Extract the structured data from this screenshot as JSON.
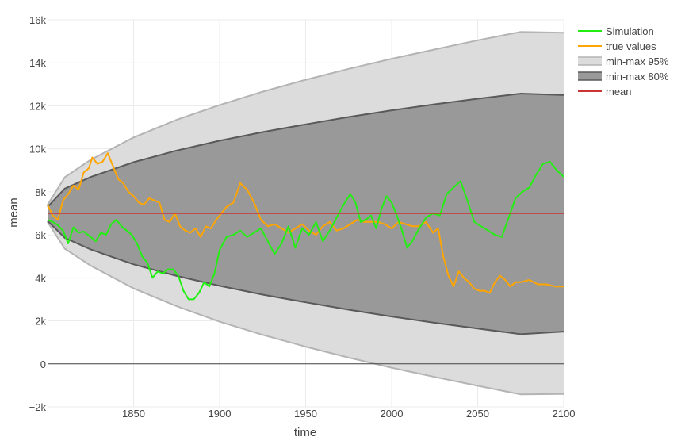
{
  "chart_data": {
    "type": "line",
    "title": "",
    "xlabel": "time",
    "ylabel": "mean",
    "xlim": [
      1800,
      2100
    ],
    "ylim": [
      -2000,
      16000
    ],
    "x_ticks": [
      1850,
      1900,
      1950,
      2000,
      2050,
      2100
    ],
    "x_tick_labels": [
      "1850",
      "1900",
      "1950",
      "2000",
      "2050",
      "2100"
    ],
    "y_ticks": [
      -2000,
      0,
      2000,
      4000,
      6000,
      8000,
      10000,
      12000,
      14000,
      16000
    ],
    "y_tick_labels": [
      "−2k",
      "0",
      "2k",
      "4k",
      "6k",
      "8k",
      "10k",
      "12k",
      "14k",
      "16k"
    ],
    "grid": true,
    "legend_position": "top-right",
    "colors": {
      "simulation": "#22ee11",
      "true_values": "#ffa500",
      "band95_fill": "#dcdcdc",
      "band95_edge": "#b4b4b4",
      "band80_fill": "#999999",
      "band80_edge": "#5a5a5a",
      "mean": "#cc3333",
      "zero_line": "#444444",
      "grid": "#ebebeb"
    },
    "legend": [
      {
        "key": "simulation",
        "label": "Simulation",
        "style": "line"
      },
      {
        "key": "true_values",
        "label": "true values",
        "style": "line"
      },
      {
        "key": "band95",
        "label": "min-max 95%",
        "style": "band"
      },
      {
        "key": "band80",
        "label": "min-max 80%",
        "style": "band"
      },
      {
        "key": "mean",
        "label": "mean",
        "style": "line"
      }
    ],
    "bands": {
      "x": [
        1800,
        1810,
        1825,
        1850,
        1875,
        1900,
        1925,
        1950,
        1975,
        2000,
        2025,
        2050,
        2075,
        2100
      ],
      "band95_upper": [
        7400,
        8680,
        9490,
        10530,
        11350,
        12040,
        12660,
        13210,
        13720,
        14190,
        14620,
        15050,
        15440,
        15400
      ],
      "band95_lower": [
        6600,
        5360,
        4570,
        3510,
        2680,
        1960,
        1350,
        800,
        290,
        -180,
        -610,
        -1020,
        -1420,
        -1400
      ],
      "band80_upper": [
        7300,
        8150,
        8690,
        9380,
        9920,
        10380,
        10780,
        11140,
        11480,
        11790,
        12070,
        12330,
        12570,
        12500
      ],
      "band80_lower": [
        6650,
        5860,
        5320,
        4630,
        4090,
        3630,
        3220,
        2860,
        2520,
        2200,
        1910,
        1640,
        1380,
        1500
      ]
    },
    "series": [
      {
        "name": "Simulation",
        "key": "simulation",
        "x": [
          1800,
          1803,
          1806,
          1809,
          1812,
          1815,
          1818,
          1821,
          1825,
          1828,
          1831,
          1834,
          1837,
          1840,
          1843,
          1846,
          1849,
          1852,
          1855,
          1858,
          1861,
          1864,
          1867,
          1870,
          1873,
          1876,
          1879,
          1882,
          1885,
          1888,
          1891,
          1894,
          1897,
          1900,
          1904,
          1908,
          1912,
          1916,
          1920,
          1924,
          1928,
          1932,
          1936,
          1940,
          1944,
          1948,
          1952,
          1956,
          1960,
          1964,
          1968,
          1972,
          1976,
          1979,
          1982,
          1985,
          1988,
          1991,
          1994,
          1997,
          2000,
          2003,
          2006,
          2009,
          2012,
          2016,
          2020,
          2024,
          2028,
          2032,
          2036,
          2040,
          2044,
          2048,
          2052,
          2056,
          2060,
          2064,
          2068,
          2072,
          2076,
          2080,
          2084,
          2088,
          2092,
          2096,
          2100
        ],
        "values": [
          6700,
          6600,
          6450,
          6200,
          5600,
          6350,
          6100,
          6150,
          5900,
          5700,
          6100,
          6000,
          6500,
          6700,
          6400,
          6200,
          6000,
          5600,
          5000,
          4700,
          4000,
          4300,
          4200,
          4400,
          4400,
          4100,
          3400,
          3000,
          3000,
          3300,
          3800,
          3600,
          4200,
          5300,
          5900,
          6000,
          6200,
          5900,
          6100,
          6300,
          5700,
          5100,
          5600,
          6400,
          5400,
          6300,
          6000,
          6600,
          5700,
          6200,
          6800,
          7400,
          7900,
          7500,
          6600,
          6700,
          6900,
          6300,
          7200,
          7800,
          7500,
          6900,
          6200,
          5400,
          5700,
          6300,
          6800,
          7000,
          6900,
          7900,
          8200,
          8500,
          7600,
          6600,
          6400,
          6200,
          6000,
          5900,
          6800,
          7700,
          8000,
          8200,
          8800,
          9300,
          9400,
          9000,
          8700
        ]
      },
      {
        "name": "true values",
        "key": "true_values",
        "x": [
          1800,
          1803,
          1806,
          1809,
          1812,
          1815,
          1818,
          1821,
          1824,
          1826,
          1829,
          1832,
          1835,
          1838,
          1841,
          1844,
          1847,
          1850,
          1853,
          1856,
          1859,
          1862,
          1865,
          1868,
          1871,
          1874,
          1877,
          1880,
          1883,
          1886,
          1889,
          1892,
          1895,
          1898,
          1901,
          1904,
          1908,
          1912,
          1916,
          1920,
          1924,
          1928,
          1932,
          1936,
          1940,
          1944,
          1948,
          1952,
          1956,
          1960,
          1964,
          1968,
          1972,
          1976,
          1980,
          1984,
          1988,
          1992,
          1996,
          2000,
          2004,
          2008,
          2012,
          2016,
          2020,
          2024,
          2027,
          2030,
          2033,
          2036,
          2039,
          2042,
          2045,
          2048,
          2051,
          2054,
          2057,
          2060,
          2063,
          2066,
          2069,
          2072,
          2075,
          2080,
          2085,
          2090,
          2095,
          2100
        ],
        "values": [
          7400,
          6900,
          6700,
          7600,
          7900,
          8300,
          8100,
          8900,
          9100,
          9600,
          9300,
          9400,
          9800,
          9200,
          8600,
          8400,
          8000,
          7800,
          7500,
          7400,
          7700,
          7600,
          7500,
          6700,
          6600,
          7000,
          6400,
          6200,
          6100,
          6300,
          5900,
          6400,
          6300,
          6700,
          7000,
          7300,
          7500,
          8400,
          8100,
          7500,
          6700,
          6400,
          6500,
          6300,
          6100,
          6300,
          6500,
          6200,
          6000,
          6400,
          6600,
          6200,
          6300,
          6500,
          6700,
          6600,
          6600,
          6600,
          6500,
          6300,
          6600,
          6500,
          6400,
          6400,
          6600,
          6100,
          6300,
          5000,
          4100,
          3600,
          4300,
          4000,
          3800,
          3500,
          3400,
          3400,
          3300,
          3800,
          4100,
          3900,
          3600,
          3800,
          3800,
          3900,
          3700,
          3700,
          3600,
          3600
        ]
      },
      {
        "name": "mean",
        "key": "mean",
        "x": [
          1800,
          2100
        ],
        "values": [
          7000,
          7000
        ]
      }
    ]
  }
}
